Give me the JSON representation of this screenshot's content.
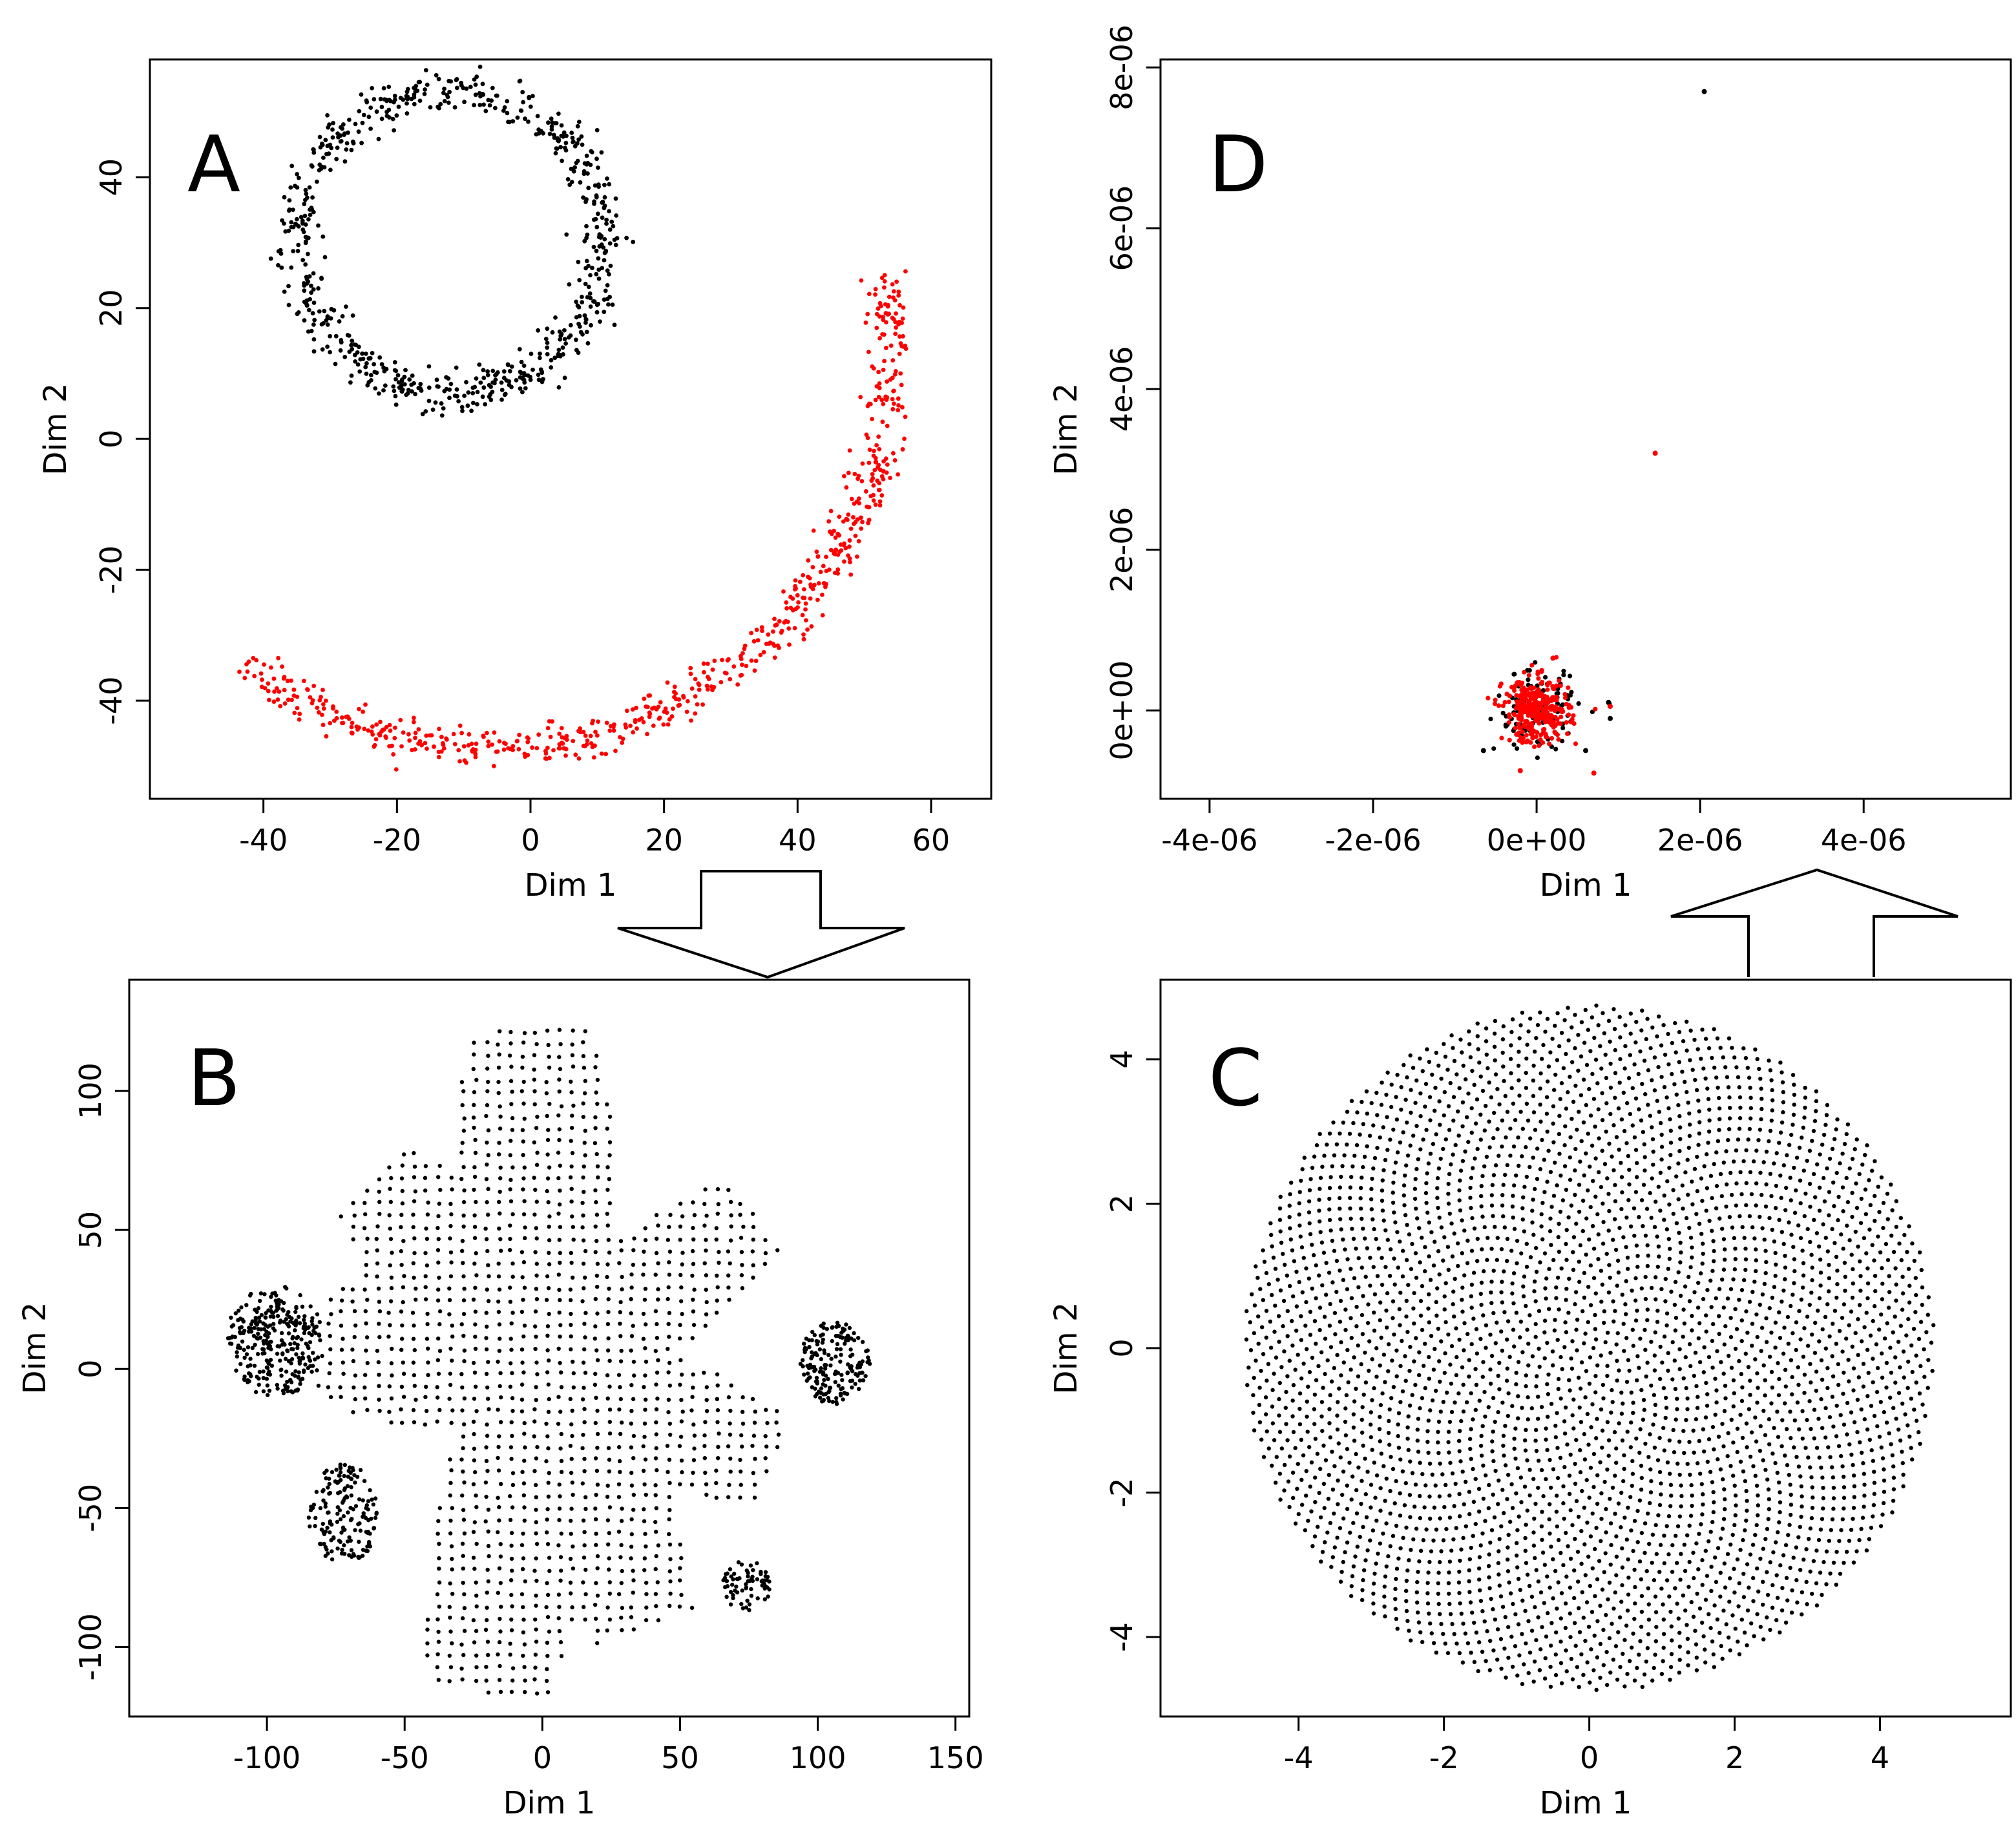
{
  "figure": {
    "arrows": [
      {
        "from": "A",
        "to": "B"
      },
      {
        "from": "C",
        "to": "D"
      }
    ]
  },
  "colors": {
    "black": "#000000",
    "red": "#ff0000"
  },
  "chart_data": [
    {
      "id": "A",
      "type": "scatter",
      "panel_label": "A",
      "xlabel": "Dim 1",
      "ylabel": "Dim 2",
      "xlim": [
        -57,
        69
      ],
      "ylim": [
        -55,
        58
      ],
      "xticks": [
        -40,
        -20,
        0,
        20,
        40,
        60
      ],
      "xtick_labels": [
        "-40",
        "-20",
        "0",
        "20",
        "40",
        "60"
      ],
      "yticks": [
        -40,
        -20,
        0,
        20,
        40
      ],
      "ytick_labels": [
        "-40",
        "-20",
        "0",
        "20",
        "40"
      ],
      "grid": false,
      "series": [
        {
          "color": "#000000",
          "shape": "circle",
          "center": [
            -12,
            30
          ],
          "radius": 23,
          "noise": 1.6,
          "count": 700
        },
        {
          "color": "#ff0000",
          "shape": "arc",
          "center": [
            -6,
            13
          ],
          "radius": 60,
          "start_deg": 232,
          "end_deg": 372,
          "noise": 1.6,
          "count": 650
        }
      ]
    },
    {
      "id": "B",
      "type": "scatter",
      "panel_label": "B",
      "xlabel": "Dim 1",
      "ylabel": "Dim 2",
      "xlim": [
        -150,
        155
      ],
      "ylim": [
        -125,
        140
      ],
      "xticks": [
        -100,
        -50,
        0,
        50,
        100,
        150
      ],
      "xtick_labels": [
        "-100",
        "-50",
        "0",
        "50",
        "100",
        "150"
      ],
      "yticks": [
        -100,
        -50,
        0,
        50,
        100
      ],
      "ytick_labels": [
        "-100",
        "-50",
        "0",
        "50",
        "100"
      ],
      "grid": false,
      "series": [
        {
          "color": "#000000",
          "shape": "petals",
          "center": [
            0,
            0
          ],
          "petals": [
            {
              "angle": 92,
              "length": 122,
              "width": 60
            },
            {
              "angle": 132,
              "length": 92,
              "width": 50
            },
            {
              "angle": 35,
              "length": 95,
              "width": 46
            },
            {
              "angle": 172,
              "length": 80,
              "width": 56
            },
            {
              "angle": -22,
              "length": 90,
              "width": 46
            },
            {
              "angle": -68,
              "length": 100,
              "width": 52
            },
            {
              "angle": -100,
              "length": 118,
              "width": 58
            }
          ]
        },
        {
          "color": "#000000",
          "shape": "blob",
          "center": [
            -97,
            10
          ],
          "rx": 18,
          "ry": 20,
          "count": 300
        },
        {
          "color": "#000000",
          "shape": "blob",
          "center": [
            106,
            2
          ],
          "rx": 13,
          "ry": 15,
          "count": 180
        },
        {
          "color": "#000000",
          "shape": "blob",
          "center": [
            -72,
            -52
          ],
          "rx": 13,
          "ry": 18,
          "count": 160
        },
        {
          "color": "#000000",
          "shape": "blob",
          "center": [
            74,
            -78
          ],
          "rx": 9,
          "ry": 9,
          "count": 70
        }
      ]
    },
    {
      "id": "C",
      "type": "scatter",
      "panel_label": "C",
      "xlabel": "Dim 1",
      "ylabel": "Dim 2",
      "xlim": [
        -5.9,
        5.8
      ],
      "ylim": [
        -5.1,
        5.1
      ],
      "xticks": [
        -4,
        -2,
        0,
        2,
        4
      ],
      "xtick_labels": [
        "-4",
        "-2",
        "0",
        "2",
        "4"
      ],
      "yticks": [
        -4,
        -2,
        0,
        2,
        4
      ],
      "ytick_labels": [
        "-4",
        "-2",
        "0",
        "2",
        "4"
      ],
      "grid": false,
      "series": [
        {
          "color": "#000000",
          "shape": "disk",
          "center": [
            0,
            0
          ],
          "radius": 4.75,
          "count": 3400
        }
      ]
    },
    {
      "id": "D",
      "type": "scatter",
      "panel_label": "D",
      "xlabel": "Dim 1",
      "ylabel": "Dim 2",
      "xlim": [
        -4.6e-06,
        5.8e-06
      ],
      "ylim": [
        -1.1e-06,
        8.1e-06
      ],
      "xticks": [
        -4e-06,
        -2e-06,
        0,
        2e-06,
        4e-06
      ],
      "xtick_labels": [
        "-4e-06",
        "-2e-06",
        "0e+00",
        "2e-06",
        "4e-06"
      ],
      "yticks": [
        0,
        2e-06,
        4e-06,
        6e-06,
        8e-06
      ],
      "ytick_labels": [
        "0e+00",
        "2e-06",
        "4e-06",
        "6e-06",
        "8e-06"
      ],
      "grid": false,
      "series": [
        {
          "color": "#000000",
          "shape": "cluster",
          "center": [
            0,
            0
          ],
          "spread": [
            2.5e-07,
            2.4e-07
          ],
          "count": 120
        },
        {
          "color": "#ff0000",
          "shape": "cluster",
          "center": [
            0,
            0
          ],
          "spread": [
            2e-07,
            2e-07
          ],
          "count": 320
        },
        {
          "color": "#000000",
          "shape": "points",
          "points": [
            [
              2.05e-06,
              7.7e-06
            ],
            [
              9e-07,
              -1e-07
            ],
            [
              8.8e-07,
              1e-07
            ],
            [
              -6.5e-07,
              -5e-07
            ],
            [
              6e-07,
              -5e-07
            ]
          ]
        },
        {
          "color": "#ff0000",
          "shape": "points",
          "points": [
            [
              1.45e-06,
              3.2e-06
            ],
            [
              2e-07,
              6.5e-07
            ],
            [
              7e-07,
              -7.8e-07
            ],
            [
              -2e-07,
              -7.5e-07
            ],
            [
              9e-07,
              5e-08
            ]
          ]
        }
      ]
    }
  ]
}
